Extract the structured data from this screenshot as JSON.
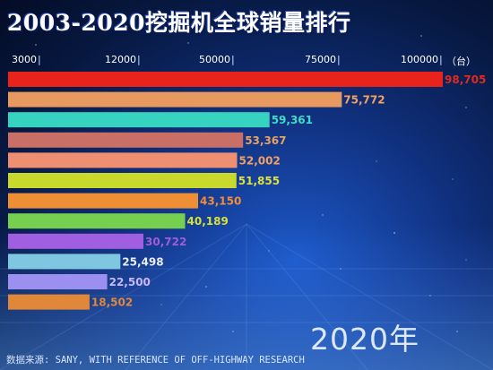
{
  "header": {
    "title": "2003-2020挖掘机全球销量排行"
  },
  "colors": {
    "bars": [
      "#e8231b",
      "#e7995f",
      "#36d3c0",
      "#c96f65",
      "#ef8f72",
      "#c9d92b",
      "#ef8f35",
      "#76cf4e",
      "#a05ee0",
      "#7fc6e0",
      "#9b8ff0",
      "#e1873a"
    ],
    "labels": [
      "#e02a1e",
      "#f5a060",
      "#3fdcc6",
      "#e9a060",
      "#f5a060",
      "#dfe23a",
      "#f28c3a",
      "#d6e23a",
      "#a25cd8",
      "#e8eef8",
      "#c8b8f8",
      "#e1873a"
    ]
  },
  "chart_data": {
    "type": "bar",
    "orientation": "horizontal",
    "title": "2003-2020挖掘机全球销量排行",
    "values": [
      98705,
      75772,
      59361,
      53367,
      52002,
      51855,
      43150,
      40189,
      30722,
      25498,
      22500,
      18502
    ],
    "value_labels": [
      "98,705",
      "75,772",
      "59,361",
      "53,367",
      "52,002",
      "51,855",
      "43,150",
      "40,189",
      "30,722",
      "25,498",
      "22,500",
      "18,502"
    ],
    "x_ticks": [
      "3000",
      "12000",
      "50000",
      "75000",
      "100000"
    ],
    "x_unit": "（台）",
    "year_label": "2020年",
    "source": "数据来源: SANY, WITH REFERENCE OF OFF-HIGHWAY RESEARCH"
  }
}
